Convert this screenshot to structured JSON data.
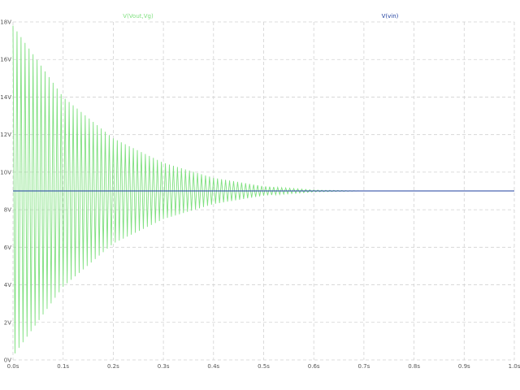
{
  "chart_data": {
    "type": "line",
    "title": "",
    "xlabel": "",
    "ylabel": "",
    "xlim": [
      0,
      1.0
    ],
    "ylim": [
      0,
      18
    ],
    "grid": true,
    "x_ticks": [
      {
        "value": 0.0,
        "label": "0.0s"
      },
      {
        "value": 0.1,
        "label": "0.1s"
      },
      {
        "value": 0.2,
        "label": "0.2s"
      },
      {
        "value": 0.3,
        "label": "0.3s"
      },
      {
        "value": 0.4,
        "label": "0.4s"
      },
      {
        "value": 0.5,
        "label": "0.5s"
      },
      {
        "value": 0.6,
        "label": "0.6s"
      },
      {
        "value": 0.7,
        "label": "0.7s"
      },
      {
        "value": 0.8,
        "label": "0.8s"
      },
      {
        "value": 0.9,
        "label": "0.9s"
      },
      {
        "value": 1.0,
        "label": "1.0s"
      }
    ],
    "y_ticks": [
      {
        "value": 0,
        "label": "0V"
      },
      {
        "value": 2,
        "label": "2V"
      },
      {
        "value": 4,
        "label": "4V"
      },
      {
        "value": 6,
        "label": "6V"
      },
      {
        "value": 8,
        "label": "8V"
      },
      {
        "value": 10,
        "label": "10V"
      },
      {
        "value": 12,
        "label": "12V"
      },
      {
        "value": 14,
        "label": "14V"
      },
      {
        "value": 16,
        "label": "16V"
      },
      {
        "value": 18,
        "label": "18V"
      }
    ],
    "series": [
      {
        "name": "V(Vout,Vg)",
        "color": "#7fe07f",
        "kind": "damped-oscillation",
        "envelope_x": [
          0.0,
          0.1,
          0.2,
          0.3,
          0.4,
          0.5,
          0.6,
          0.7,
          1.0
        ],
        "envelope_upper": [
          17.8,
          14.0,
          11.8,
          10.5,
          9.7,
          9.25,
          9.05,
          9.0,
          9.0
        ],
        "envelope_lower": [
          0.2,
          3.9,
          6.2,
          7.5,
          8.3,
          8.75,
          8.95,
          9.0,
          9.0
        ]
      },
      {
        "name": "V(vin)",
        "color": "#1f3f9f",
        "x": [
          0.0,
          1.0
        ],
        "y": [
          9.0,
          9.0
        ]
      }
    ],
    "legend_position": "top"
  }
}
